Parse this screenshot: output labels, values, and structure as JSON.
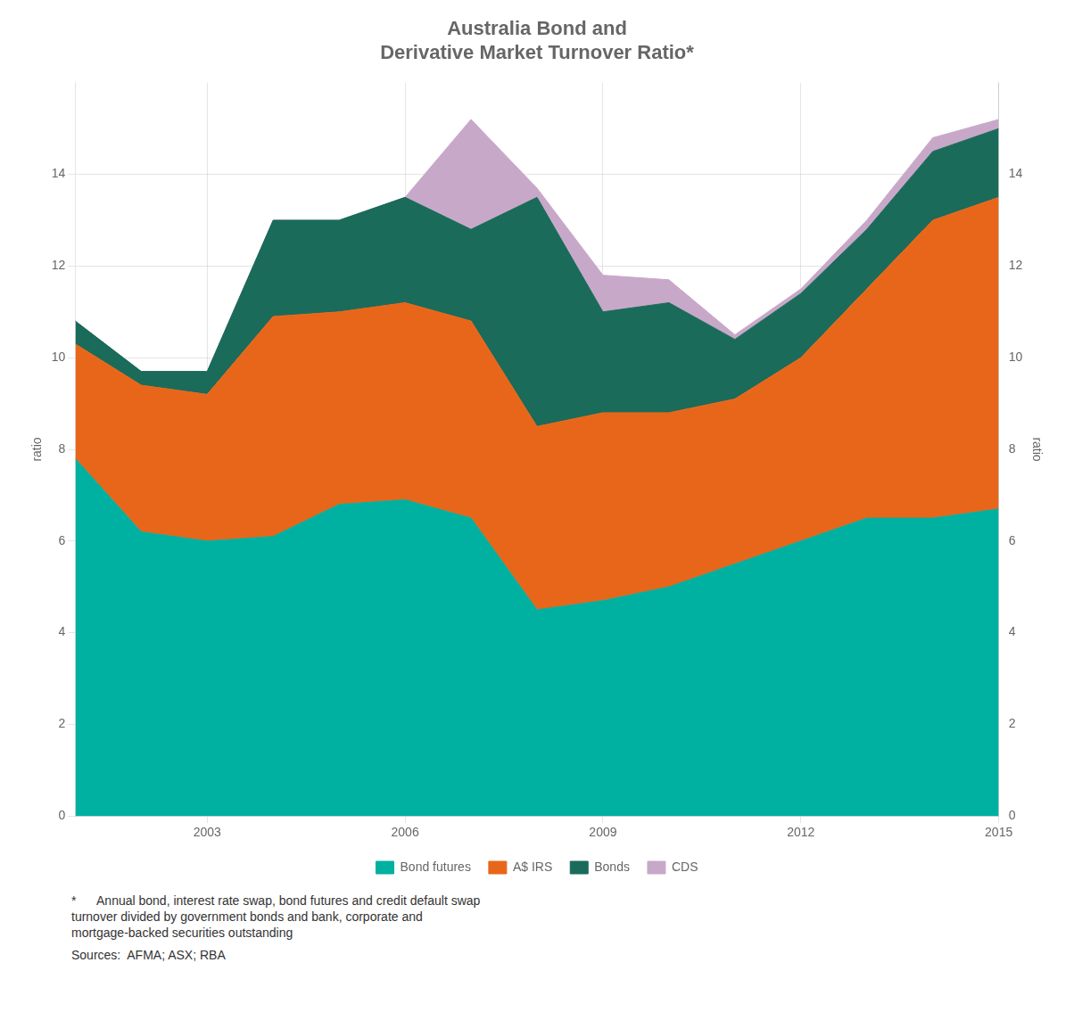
{
  "chart_data": {
    "type": "area",
    "title": "Australia Bond and\nDerivative Market Turnover Ratio*",
    "ylabel": "ratio",
    "y2label": "ratio",
    "x": [
      2001,
      2002,
      2003,
      2004,
      2005,
      2006,
      2007,
      2008,
      2009,
      2010,
      2011,
      2012,
      2013,
      2014,
      2015
    ],
    "series": [
      {
        "name": "Bond futures",
        "color": "#00B0A0",
        "values": [
          7.8,
          6.2,
          6.0,
          6.1,
          6.8,
          6.9,
          6.5,
          4.5,
          4.7,
          5.0,
          5.5,
          6.0,
          6.5,
          6.5,
          6.7
        ]
      },
      {
        "name": "A$ IRS",
        "color": "#E8661A",
        "values": [
          2.5,
          3.2,
          3.2,
          4.8,
          4.2,
          4.3,
          4.3,
          4.0,
          4.1,
          3.8,
          3.6,
          4.0,
          5.0,
          6.5,
          6.8
        ]
      },
      {
        "name": "Bonds",
        "color": "#1A6B5A",
        "values": [
          0.5,
          0.3,
          0.5,
          2.1,
          2.0,
          2.3,
          2.0,
          5.0,
          2.2,
          2.4,
          1.3,
          1.4,
          1.3,
          1.5,
          1.5
        ]
      },
      {
        "name": "CDS",
        "color": "#C8A8C8",
        "values": [
          0.0,
          0.0,
          0.0,
          0.0,
          0.0,
          0.0,
          2.4,
          0.2,
          0.8,
          0.5,
          0.1,
          0.1,
          0.2,
          0.3,
          0.2
        ]
      }
    ],
    "xlim": [
      2001,
      2015
    ],
    "xticks": [
      2003,
      2006,
      2009,
      2012,
      2015
    ],
    "ylim": [
      0,
      16
    ],
    "yticks": [
      0,
      2,
      4,
      6,
      8,
      10,
      12,
      14
    ],
    "y2lim": [
      0,
      16
    ],
    "y2ticks": [
      0,
      2,
      4,
      6,
      8,
      10,
      12,
      14
    ],
    "stacked": true,
    "grid": true,
    "legend": "bottom",
    "footnote": "*      Annual bond, interest rate swap, bond futures and credit default swap\nturnover divided by government bonds and bank, corporate and\nmortgage-backed securities outstanding",
    "source": "Sources:  AFMA; ASX; RBA"
  }
}
